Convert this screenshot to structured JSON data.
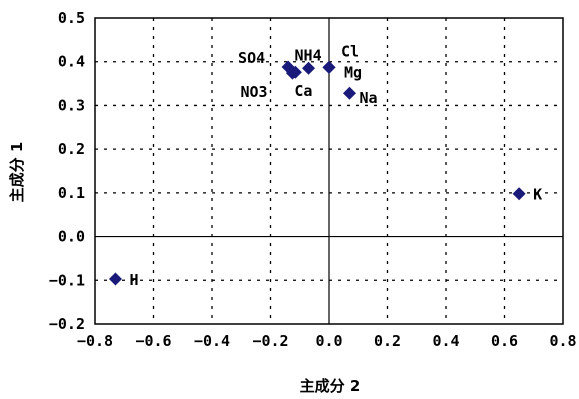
{
  "chart_data": {
    "type": "scatter",
    "title": "",
    "xlabel": "主成分 2",
    "ylabel": "主成分 1",
    "xlim": [
      -0.8,
      0.8
    ],
    "ylim": [
      -0.2,
      0.5
    ],
    "xticks": [
      -0.8,
      -0.6,
      -0.4,
      -0.2,
      0.0,
      0.2,
      0.4,
      0.6,
      0.8
    ],
    "yticks": [
      -0.2,
      -0.1,
      0.0,
      0.1,
      0.2,
      0.3,
      0.4,
      0.5
    ],
    "xtick_labels": [
      "−0.8",
      "−0.6",
      "−0.4",
      "−0.2",
      "0.0",
      "0.2",
      "0.4",
      "0.6",
      "0.8"
    ],
    "ytick_labels": [
      "−0.2",
      "−0.1",
      "0.0",
      "0.1",
      "0.2",
      "0.3",
      "0.4",
      "0.5"
    ],
    "grid": true,
    "marker_color": "#1a1a7a",
    "points": [
      {
        "label": "SO4",
        "x": -0.14,
        "y": 0.388
      },
      {
        "label": "NO3",
        "x": -0.125,
        "y": 0.374
      },
      {
        "label": "Ca",
        "x": -0.115,
        "y": 0.376
      },
      {
        "label": "NH4",
        "x": -0.07,
        "y": 0.385
      },
      {
        "label": "Cl",
        "x": 0.0,
        "y": 0.387
      },
      {
        "label": "Mg",
        "x": 0.0,
        "y": 0.387
      },
      {
        "label": "Na",
        "x": 0.07,
        "y": 0.328
      },
      {
        "label": "K",
        "x": 0.65,
        "y": 0.098
      },
      {
        "label": "H",
        "x": -0.73,
        "y": -0.097
      }
    ]
  }
}
